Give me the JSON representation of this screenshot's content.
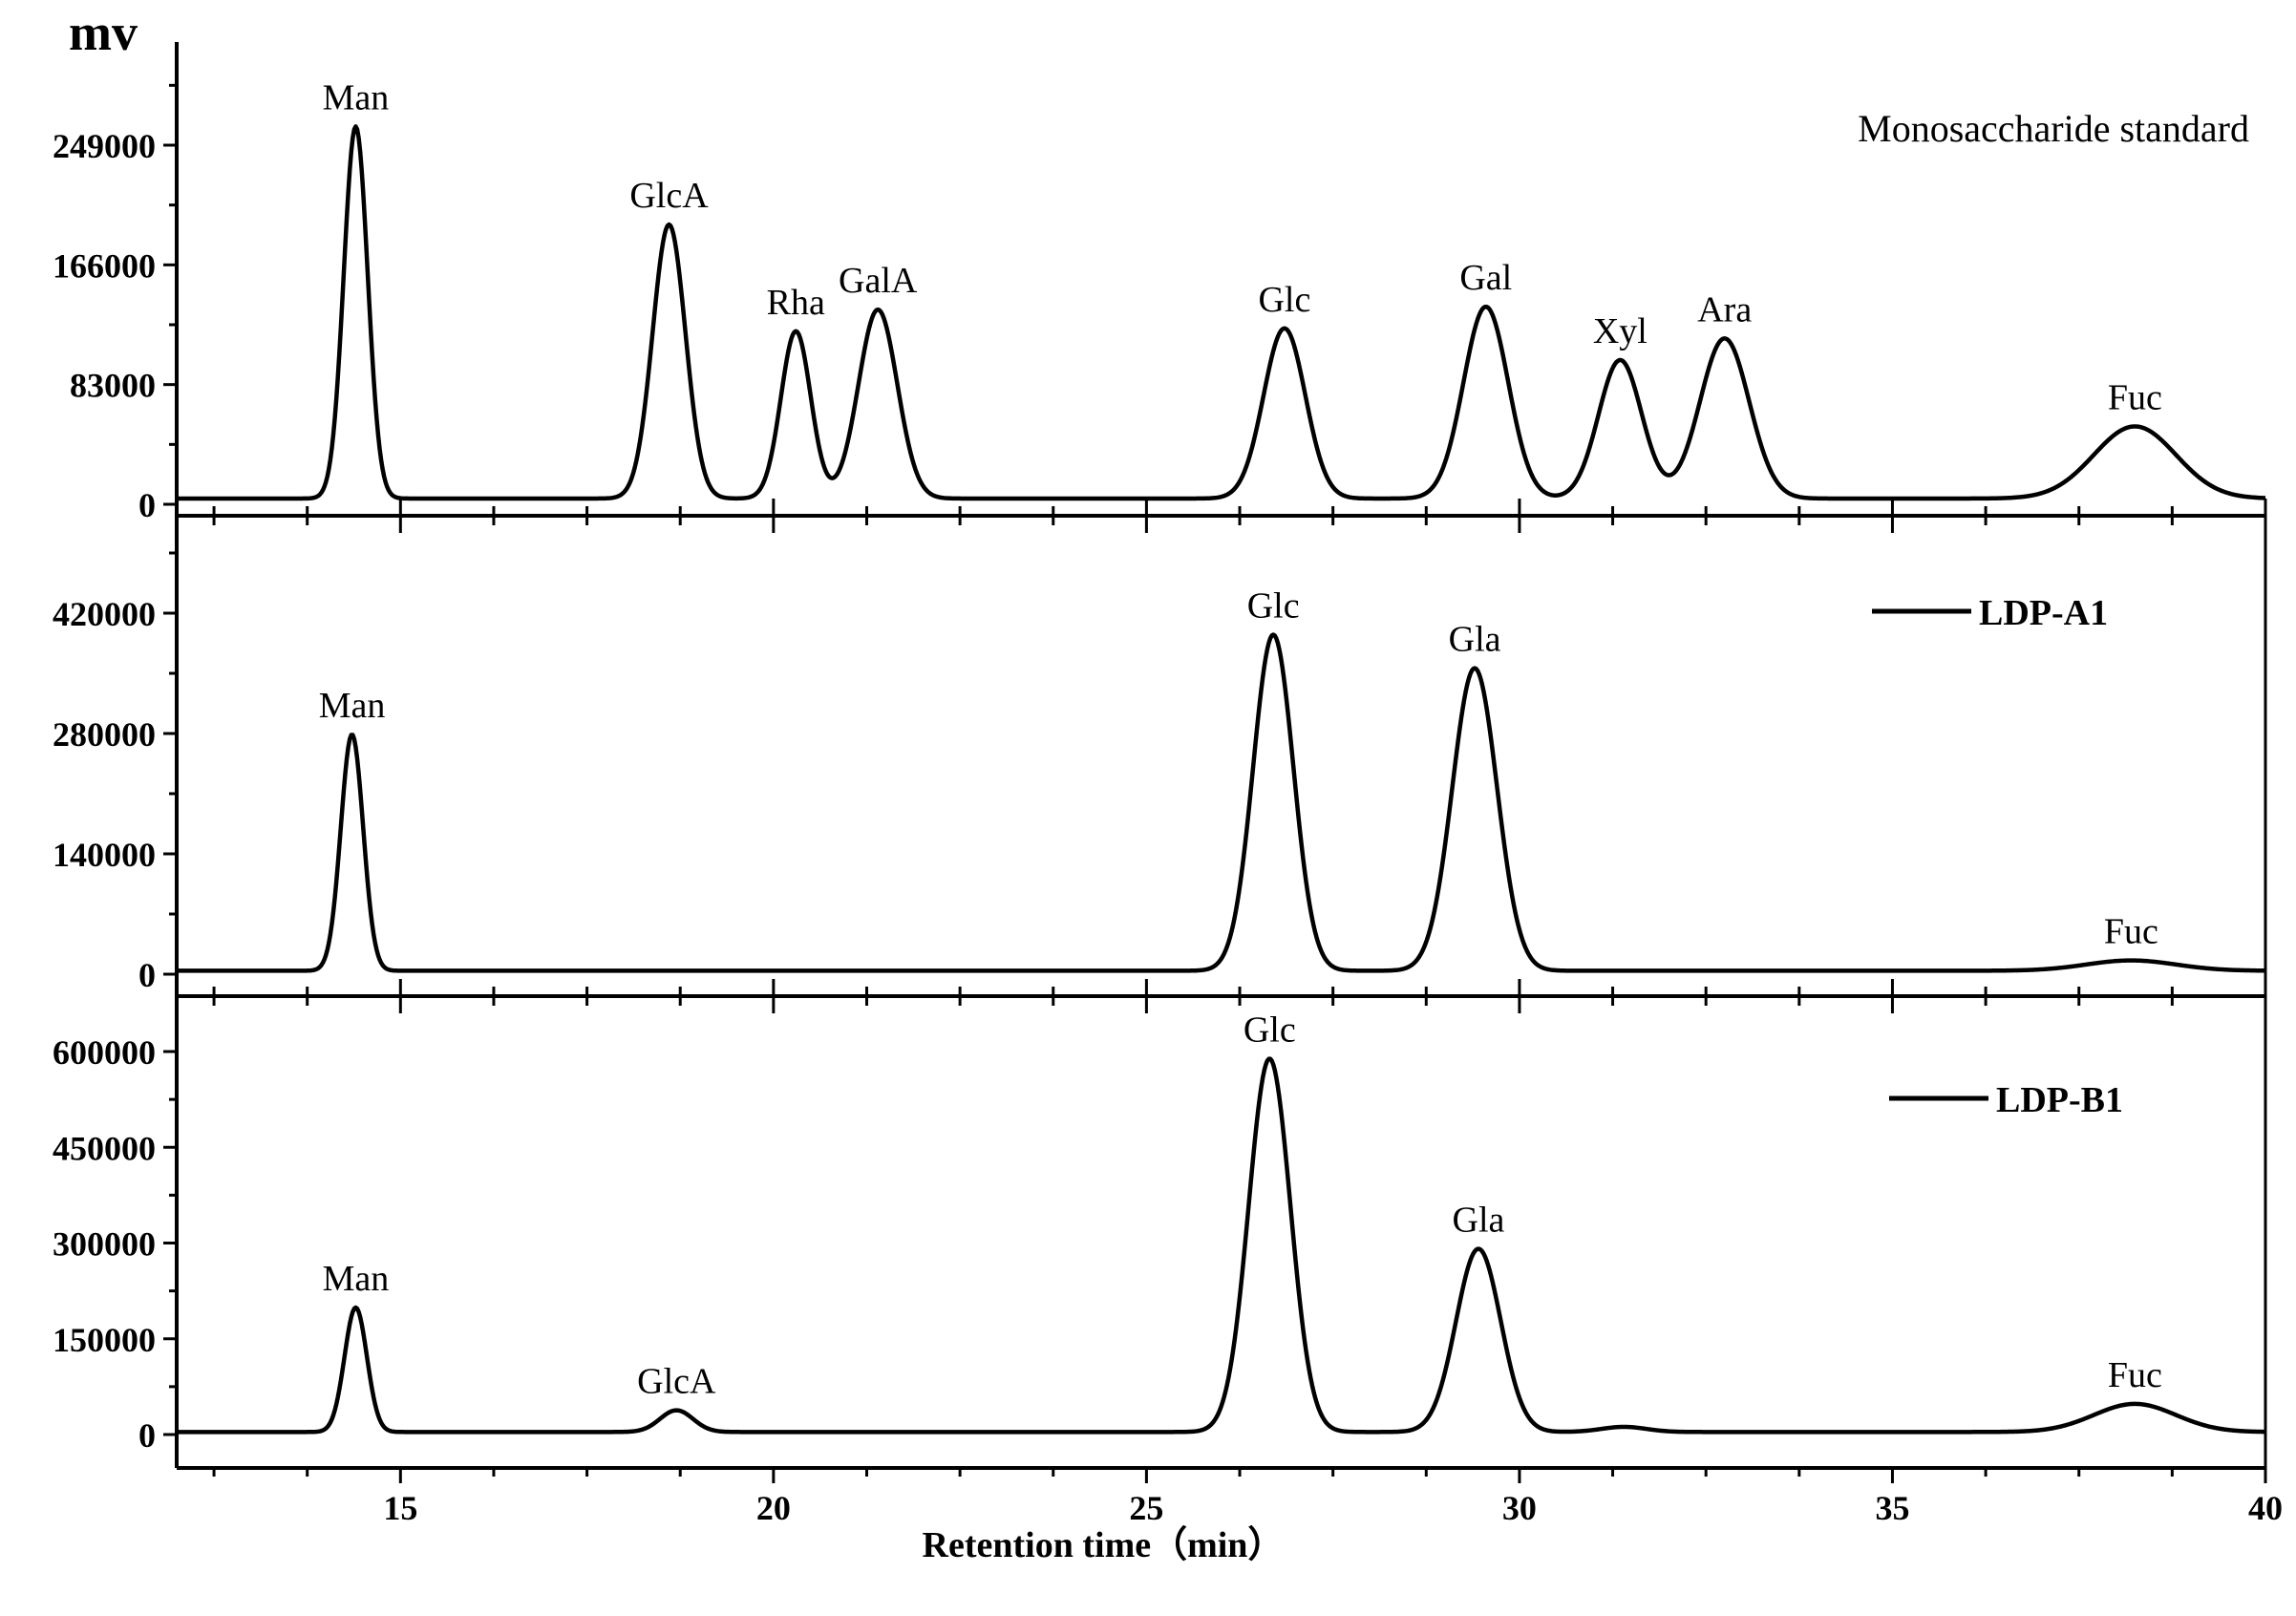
{
  "chart_data": {
    "type": "line",
    "ylabel": "mv",
    "xlabel": "Retention time（min）",
    "xlim": [
      12,
      40
    ],
    "x_ticks": [
      15,
      20,
      25,
      30,
      35,
      40
    ],
    "line_color": "#000000",
    "panels": [
      {
        "name": "Monosaccharide standard",
        "label_style": "plain",
        "ylim": [
          0,
          295000
        ],
        "y_ticks": [
          0,
          83000,
          166000,
          249000
        ],
        "baseline": 4000,
        "peaks": [
          {
            "label": "Man",
            "x": 14.4,
            "y": 258000,
            "sigma": 0.16
          },
          {
            "label": "GlcA",
            "x": 18.6,
            "y": 190000,
            "sigma": 0.22
          },
          {
            "label": "Rha",
            "x": 20.3,
            "y": 116000,
            "sigma": 0.2
          },
          {
            "label": "GalA",
            "x": 21.4,
            "y": 131000,
            "sigma": 0.26
          },
          {
            "label": "Glc",
            "x": 26.85,
            "y": 118000,
            "sigma": 0.28
          },
          {
            "label": "Gal",
            "x": 29.55,
            "y": 133000,
            "sigma": 0.3
          },
          {
            "label": "Xyl",
            "x": 31.35,
            "y": 96000,
            "sigma": 0.29
          },
          {
            "label": "Ara",
            "x": 32.75,
            "y": 111000,
            "sigma": 0.33
          },
          {
            "label": "Fuc",
            "x": 38.25,
            "y": 50000,
            "sigma": 0.55
          }
        ]
      },
      {
        "name": "LDP-A1",
        "label_style": "legend",
        "ylim": [
          0,
          525000
        ],
        "y_ticks": [
          0,
          140000,
          280000,
          420000
        ],
        "baseline": 4000,
        "peaks": [
          {
            "label": "Man",
            "x": 14.35,
            "y": 275000,
            "sigma": 0.15
          },
          {
            "label": "Glc",
            "x": 26.7,
            "y": 391000,
            "sigma": 0.27
          },
          {
            "label": "Gla",
            "x": 29.4,
            "y": 352000,
            "sigma": 0.3
          },
          {
            "label": "Fuc",
            "x": 38.2,
            "y": 12000,
            "sigma": 0.6
          }
        ]
      },
      {
        "name": "LDP-B1",
        "label_style": "legend",
        "ylim": [
          0,
          700000
        ],
        "y_ticks": [
          0,
          150000,
          300000,
          450000,
          600000
        ],
        "baseline": 4000,
        "peaks": [
          {
            "label": "Man",
            "x": 14.4,
            "y": 195000,
            "sigma": 0.15
          },
          {
            "label": "GlcA",
            "x": 18.7,
            "y": 34000,
            "sigma": 0.22
          },
          {
            "label": "Glc",
            "x": 26.65,
            "y": 585000,
            "sigma": 0.28
          },
          {
            "label": "Gla",
            "x": 29.45,
            "y": 287000,
            "sigma": 0.3
          },
          {
            "label": "",
            "x": 31.4,
            "y": 8000,
            "sigma": 0.3
          },
          {
            "label": "Fuc",
            "x": 38.25,
            "y": 44000,
            "sigma": 0.55
          }
        ]
      }
    ]
  }
}
